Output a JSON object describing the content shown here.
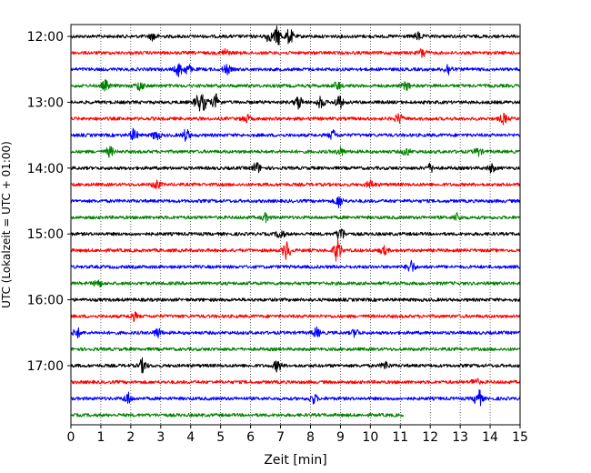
{
  "chart_data": {
    "type": "line",
    "title": "",
    "xlabel": "Zeit  [min]",
    "ylabel": "UTC (Lokalzeit = UTC + 01:00)",
    "xlim": [
      0,
      15
    ],
    "x_ticks": [
      "0",
      "1",
      "2",
      "3",
      "4",
      "5",
      "6",
      "7",
      "8",
      "9",
      "10",
      "11",
      "12",
      "13",
      "14",
      "15"
    ],
    "y_ticks": [
      "12:00",
      "13:00",
      "14:00",
      "15:00",
      "16:00",
      "17:00"
    ],
    "grid": "vertical dotted",
    "line_interval_min": 15,
    "colors_cycle": [
      "#000000",
      "#ff0000",
      "#0000ff",
      "#008000"
    ],
    "series": [
      {
        "start": "12:00",
        "color": "#000000",
        "end_min": 15,
        "events": [
          [
            2.75,
            4
          ],
          [
            6.9,
            10
          ],
          [
            7.3,
            8
          ],
          [
            6.6,
            5
          ],
          [
            11.6,
            4
          ]
        ]
      },
      {
        "start": "12:15",
        "color": "#ff0000",
        "end_min": 15,
        "events": [
          [
            5.15,
            4
          ],
          [
            11.75,
            5
          ]
        ]
      },
      {
        "start": "12:30",
        "color": "#0000ff",
        "end_min": 15,
        "events": [
          [
            3.6,
            7
          ],
          [
            3.9,
            5
          ],
          [
            5.2,
            5
          ],
          [
            12.6,
            6
          ]
        ]
      },
      {
        "start": "12:45",
        "color": "#008000",
        "end_min": 15,
        "events": [
          [
            1.15,
            5
          ],
          [
            2.3,
            5
          ],
          [
            8.9,
            4
          ],
          [
            11.2,
            4
          ]
        ]
      },
      {
        "start": "13:00",
        "color": "#000000",
        "end_min": 15,
        "events": [
          [
            4.25,
            8
          ],
          [
            4.45,
            7
          ],
          [
            4.85,
            8
          ],
          [
            7.6,
            7
          ],
          [
            8.35,
            6
          ],
          [
            8.95,
            7
          ]
        ]
      },
      {
        "start": "13:15",
        "color": "#ff0000",
        "end_min": 15,
        "events": [
          [
            5.85,
            4
          ],
          [
            10.95,
            5
          ],
          [
            14.45,
            5
          ]
        ]
      },
      {
        "start": "13:30",
        "color": "#0000ff",
        "end_min": 15,
        "events": [
          [
            2.1,
            6
          ],
          [
            2.85,
            5
          ],
          [
            3.85,
            6
          ],
          [
            8.75,
            5
          ]
        ]
      },
      {
        "start": "13:45",
        "color": "#008000",
        "end_min": 15,
        "events": [
          [
            1.3,
            5
          ],
          [
            9.0,
            4
          ],
          [
            11.2,
            4
          ],
          [
            13.6,
            4
          ]
        ]
      },
      {
        "start": "14:00",
        "color": "#000000",
        "end_min": 15,
        "events": [
          [
            6.2,
            6
          ],
          [
            12.0,
            4
          ],
          [
            14.05,
            4
          ]
        ]
      },
      {
        "start": "14:15",
        "color": "#ff0000",
        "end_min": 15,
        "events": [
          [
            2.85,
            5
          ],
          [
            10.0,
            4
          ]
        ]
      },
      {
        "start": "14:30",
        "color": "#0000ff",
        "end_min": 15,
        "events": [
          [
            8.95,
            6
          ]
        ]
      },
      {
        "start": "14:45",
        "color": "#008000",
        "end_min": 15,
        "events": [
          [
            6.5,
            4
          ],
          [
            12.9,
            4
          ]
        ]
      },
      {
        "start": "15:00",
        "color": "#000000",
        "end_min": 15,
        "events": [
          [
            7.0,
            5
          ],
          [
            9.0,
            8
          ]
        ]
      },
      {
        "start": "15:15",
        "color": "#ff0000",
        "end_min": 15,
        "events": [
          [
            7.2,
            10
          ],
          [
            8.9,
            12
          ],
          [
            10.45,
            4
          ]
        ]
      },
      {
        "start": "15:30",
        "color": "#0000ff",
        "end_min": 15,
        "events": [
          [
            11.35,
            7
          ]
        ]
      },
      {
        "start": "15:45",
        "color": "#008000",
        "end_min": 15,
        "events": [
          [
            0.9,
            4
          ]
        ]
      },
      {
        "start": "16:00",
        "color": "#000000",
        "end_min": 15,
        "events": []
      },
      {
        "start": "16:15",
        "color": "#ff0000",
        "end_min": 15,
        "events": [
          [
            2.1,
            4
          ]
        ]
      },
      {
        "start": "16:30",
        "color": "#0000ff",
        "end_min": 15,
        "events": [
          [
            0.2,
            5
          ],
          [
            2.9,
            5
          ],
          [
            8.2,
            5
          ],
          [
            9.5,
            4
          ]
        ]
      },
      {
        "start": "16:45",
        "color": "#008000",
        "end_min": 15,
        "events": []
      },
      {
        "start": "17:00",
        "color": "#000000",
        "end_min": 15,
        "events": [
          [
            2.4,
            7
          ],
          [
            6.9,
            6
          ],
          [
            10.5,
            4
          ]
        ]
      },
      {
        "start": "17:15",
        "color": "#ff0000",
        "end_min": 15,
        "events": [
          [
            13.5,
            4
          ]
        ]
      },
      {
        "start": "17:30",
        "color": "#0000ff",
        "end_min": 15,
        "events": [
          [
            1.9,
            6
          ],
          [
            8.1,
            5
          ],
          [
            13.6,
            10
          ]
        ]
      },
      {
        "start": "17:45",
        "color": "#008000",
        "end_min": 11.1,
        "events": []
      }
    ]
  }
}
